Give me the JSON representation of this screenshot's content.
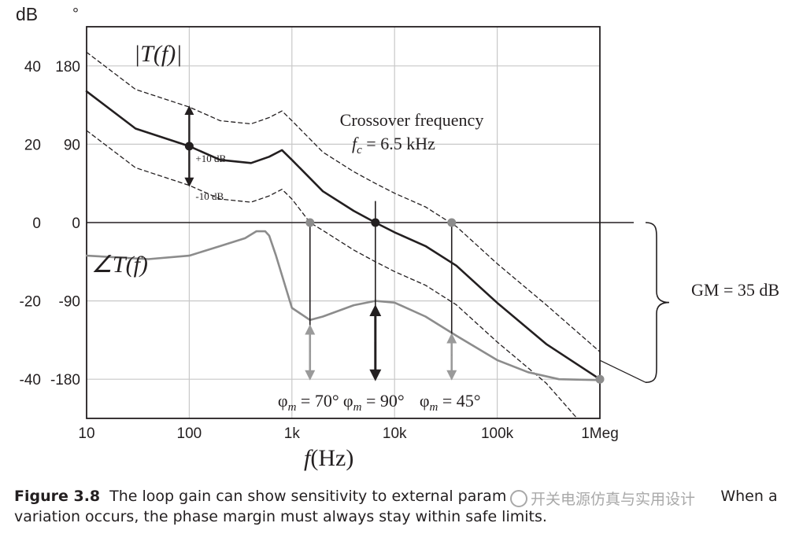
{
  "figure": {
    "caption_label": "Figure 3.8",
    "caption_text": "The loop gain can show sensitivity to external param... When a variation occurs, the phase margin must always stay within safe limits.",
    "caption_line1": "The loop gain can show sensitivity to external param",
    "caption_line1_end": "When a",
    "caption_line2": "variation occurs, the phase margin must always stay within safe limits.",
    "watermark": "开关电源仿真与实用设计"
  },
  "chart_data": {
    "type": "line",
    "title": "",
    "xlabel_f": "f",
    "xlabel_unit": "(Hz)",
    "x_scale": "log",
    "xlim": [
      10,
      1000000
    ],
    "x_ticks": [
      {
        "value": 10,
        "label": "10"
      },
      {
        "value": 100,
        "label": "100"
      },
      {
        "value": 1000,
        "label": "1k"
      },
      {
        "value": 10000,
        "label": "10k"
      },
      {
        "value": 100000,
        "label": "100k"
      },
      {
        "value": 1000000,
        "label": "1Meg"
      }
    ],
    "y_left_unit": "dB",
    "y_right_unit": "°",
    "ylim_db": [
      -50,
      50
    ],
    "ylim_deg": [
      -225,
      225
    ],
    "y_ticks_db": [
      "40",
      "20",
      "0",
      "-20",
      "-40"
    ],
    "y_ticks_deg": [
      "180",
      "90",
      "0",
      "-90",
      "-180"
    ],
    "y_tick_values_db": [
      40,
      20,
      0,
      -20,
      -40
    ],
    "grid": true,
    "series": [
      {
        "name": "|T(f)|",
        "style": "solid-dark",
        "x": [
          10,
          30,
          100,
          200,
          400,
          600,
          800,
          1000,
          2000,
          4000,
          6500,
          10000,
          20000,
          40000,
          100000,
          300000,
          1000000
        ],
        "y": [
          33.5,
          24,
          19.5,
          16,
          15.2,
          16.8,
          18.5,
          16,
          8,
          3,
          0,
          -2.5,
          -6,
          -11,
          -20.5,
          -31,
          -40
        ]
      },
      {
        "name": "|T(f)| +10 dB",
        "style": "dashed",
        "x": [
          10,
          30,
          100,
          200,
          400,
          600,
          800,
          1000,
          2000,
          4000,
          6500,
          10000,
          20000,
          40000,
          100000,
          300000,
          1000000
        ],
        "y": [
          43.5,
          34,
          29.5,
          26,
          25.2,
          26.8,
          28.5,
          26,
          18,
          13,
          10,
          7.5,
          4,
          -1,
          -10.5,
          -21,
          -33
        ]
      },
      {
        "name": "|T(f)| -10 dB",
        "style": "dashed",
        "x": [
          10,
          30,
          100,
          200,
          400,
          600,
          800,
          1000,
          1500,
          2000,
          4000,
          6500,
          10000,
          20000,
          40000,
          100000,
          300000,
          600000
        ],
        "y": [
          23.5,
          14,
          9.5,
          6,
          5.2,
          6.8,
          8.5,
          6,
          0,
          -2,
          -7,
          -10,
          -12.5,
          -16,
          -21,
          -30.5,
          -41,
          -50
        ]
      },
      {
        "name": "∠T(f)",
        "style": "solid-gray",
        "x": [
          10,
          40,
          100,
          200,
          350,
          450,
          550,
          600,
          700,
          1000,
          1500,
          2000,
          4000,
          6500,
          10000,
          20000,
          40000,
          100000,
          200000,
          400000,
          1000000
        ],
        "y": [
          -38,
          -42,
          -38,
          -27,
          -18,
          -10,
          -10,
          -15,
          -38,
          -98,
          -112,
          -108,
          -95,
          -90,
          -92,
          -108,
          -130,
          -158,
          -172,
          -180,
          -181
        ]
      }
    ],
    "markers_db": [
      {
        "x": 100,
        "y": 19.5,
        "color": "dark"
      },
      {
        "x": 6500,
        "y": 0,
        "color": "dark"
      },
      {
        "x": 1500,
        "y": 0,
        "color": "gray"
      },
      {
        "x": 36000,
        "y": 0,
        "color": "gray"
      },
      {
        "x": 1000000,
        "y": -40,
        "color": "gray"
      }
    ],
    "annotations": {
      "magnitude_label": "|T(f)|",
      "phase_label": "∠T(f)",
      "plus10": "+10 dB",
      "minus10": "-10 dB",
      "crossover_title": "Crossover frequency",
      "crossover_f": "f",
      "crossover_sub": "c",
      "crossover_value": "= 6.5 kHz",
      "gm": "GM = 35 dB",
      "pm_sym": "φ",
      "pm_sub": "m",
      "pm_values": [
        {
          "x": 1500,
          "value": "= 70°"
        },
        {
          "x": 6500,
          "value": "= 90°"
        },
        {
          "x": 36000,
          "value": "= 45°"
        }
      ]
    },
    "colors": {
      "dark": "#231f20",
      "gray": "#8c8c8c",
      "grid": "#c8c8c8"
    }
  }
}
